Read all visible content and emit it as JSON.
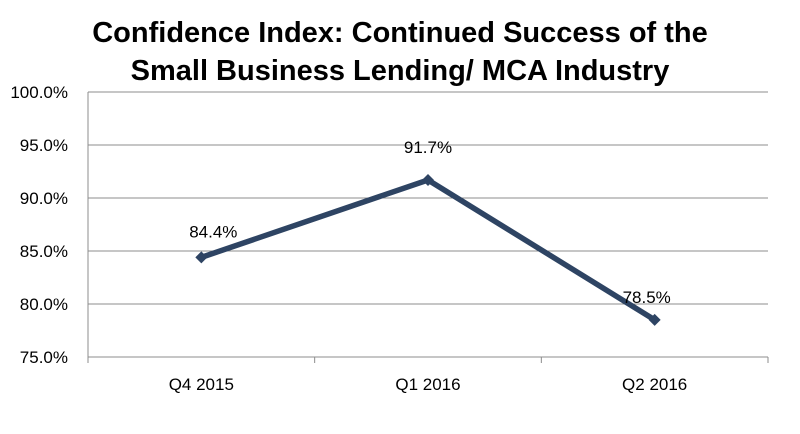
{
  "chart_data": {
    "type": "line",
    "title_lines": [
      "Confidence Index: Continued Success of the",
      "Small Business Lending/ MCA Industry"
    ],
    "categories": [
      "Q4 2015",
      "Q1 2016",
      "Q2 2016"
    ],
    "series": [
      {
        "values": [
          84.4,
          91.7,
          78.5
        ],
        "color": "#2e4463"
      }
    ],
    "data_labels": [
      "84.4%",
      "91.7%",
      "78.5%"
    ],
    "y_ticks": [
      100,
      95,
      90,
      85,
      80,
      75
    ],
    "y_tick_labels": [
      "100.0%",
      "95.0%",
      "90.0%",
      "85.0%",
      "80.0%",
      "75.0%"
    ],
    "ylim": [
      75,
      100
    ],
    "grid": true,
    "legend": false,
    "gridline_color": "#8c8c8c",
    "xlabel": "",
    "ylabel": ""
  }
}
